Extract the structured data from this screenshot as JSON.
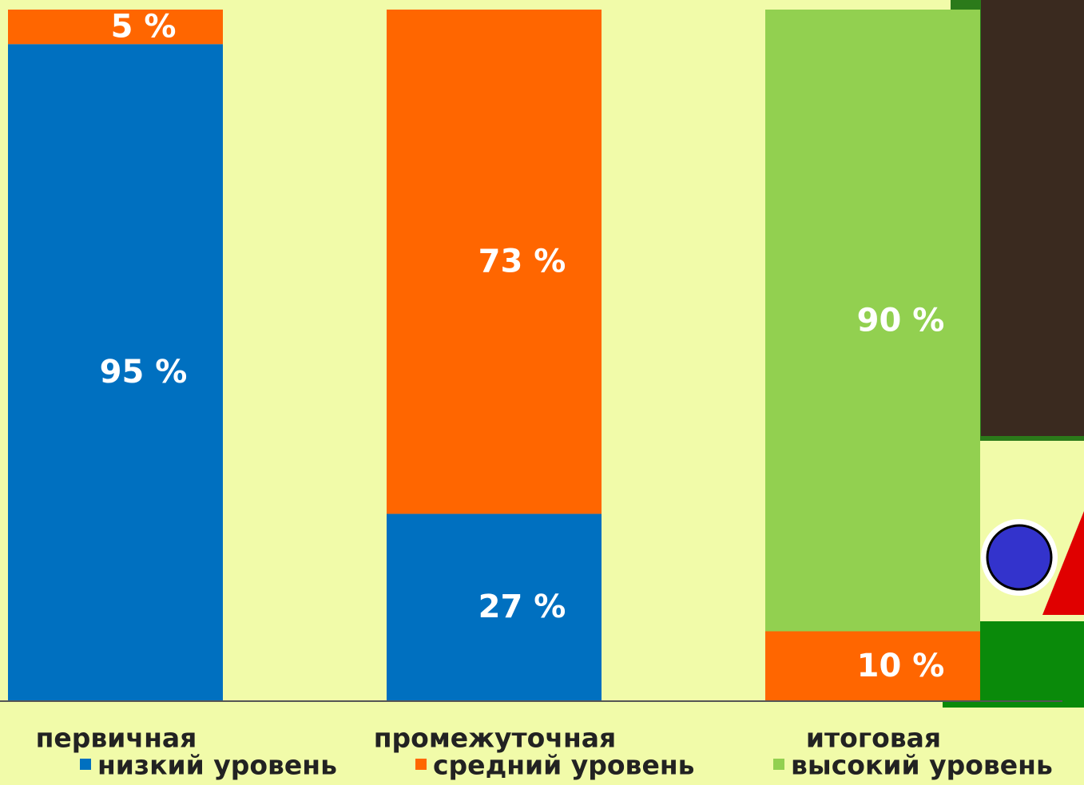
{
  "chart_data": {
    "type": "stacked_bar",
    "categories": [
      "первичная",
      "промежуточная",
      "итоговая"
    ],
    "series": [
      {
        "name": "низкий уровень",
        "color": "#0070c0",
        "values": [
          95,
          27,
          null
        ],
        "value_labels": [
          "95 %",
          "27 %",
          null
        ]
      },
      {
        "name": "средний уровень",
        "color": "#ff6600",
        "values": [
          5,
          73,
          10
        ],
        "value_labels": [
          "5 %",
          "73 %",
          "10 %"
        ]
      },
      {
        "name": "высокий уровень",
        "color": "#92d050",
        "values": [
          null,
          null,
          90
        ],
        "value_labels": [
          null,
          null,
          "90 %"
        ]
      }
    ],
    "ylim": [
      0,
      100
    ],
    "legend": "bottom"
  }
}
